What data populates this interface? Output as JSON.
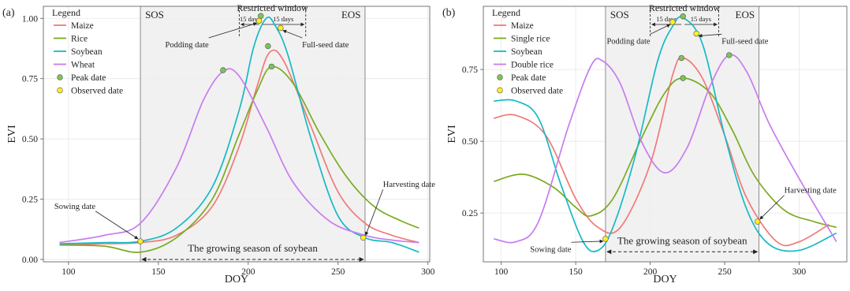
{
  "chart_data": [
    {
      "type": "line",
      "panel_label": "(a)",
      "xlabel": "DOY",
      "ylabel": "EVI",
      "xlim": [
        86,
        301
      ],
      "ylim": [
        -0.01,
        1.05
      ],
      "xticks": [
        100,
        150,
        200,
        250,
        300
      ],
      "yticks": [
        0.0,
        0.25,
        0.5,
        0.75,
        1.0
      ],
      "ytick_labels": [
        "0.00",
        "0.25",
        "0.50",
        "0.75",
        "1.00"
      ],
      "grid": true,
      "legend_placement": "top-left",
      "legend_title": "Legend",
      "season_band": {
        "start": 140,
        "end": 265,
        "start_label": "SOS",
        "end_label": "EOS"
      },
      "restricted_window": {
        "label": "Restricted window",
        "start": 195,
        "end": 232,
        "left_label": "15 days",
        "right_label": "15 days"
      },
      "growing_season_label": "The growing season of soybean",
      "series": [
        {
          "name": "Maize",
          "color": "#f07a78",
          "x": [
            95,
            120,
            140,
            160,
            180,
            195,
            205,
            212,
            220,
            235,
            250,
            265,
            280,
            295
          ],
          "y": [
            0.06,
            0.065,
            0.07,
            0.1,
            0.22,
            0.47,
            0.72,
            0.86,
            0.82,
            0.55,
            0.28,
            0.15,
            0.1,
            0.07
          ]
        },
        {
          "name": "Rice",
          "color": "#7aab22",
          "x": [
            95,
            120,
            140,
            160,
            180,
            195,
            205,
            213,
            225,
            240,
            255,
            270,
            285,
            295
          ],
          "y": [
            0.06,
            0.055,
            0.03,
            0.09,
            0.25,
            0.52,
            0.7,
            0.8,
            0.73,
            0.52,
            0.34,
            0.22,
            0.16,
            0.13
          ]
        },
        {
          "name": "Soybean",
          "color": "#18b9c4",
          "x": [
            95,
            120,
            140,
            160,
            180,
            195,
            203,
            210,
            215,
            222,
            235,
            250,
            265,
            280,
            295
          ],
          "y": [
            0.065,
            0.07,
            0.075,
            0.13,
            0.3,
            0.62,
            0.88,
            1.0,
            0.97,
            0.85,
            0.5,
            0.18,
            0.09,
            0.07,
            0.03
          ]
        },
        {
          "name": "Wheat",
          "color": "#c77cf0",
          "x": [
            95,
            120,
            140,
            160,
            175,
            186,
            195,
            210,
            225,
            245,
            265,
            280,
            295
          ],
          "y": [
            0.07,
            0.1,
            0.15,
            0.38,
            0.66,
            0.78,
            0.76,
            0.55,
            0.32,
            0.16,
            0.1,
            0.08,
            0.07
          ]
        }
      ],
      "peaks": [
        {
          "x": 207,
          "y": 1.01
        },
        {
          "x": 211,
          "y": 0.885
        },
        {
          "x": 213,
          "y": 0.8
        },
        {
          "x": 186,
          "y": 0.785
        }
      ],
      "observed": [
        {
          "x": 140,
          "y": 0.075,
          "label": "Sowing date",
          "tx": 115,
          "ty": 0.21
        },
        {
          "x": 206,
          "y": 0.99,
          "label": "Podding date",
          "tx": 178,
          "ty": 0.88
        },
        {
          "x": 218,
          "y": 0.96,
          "label": "Full-seed date",
          "tx": 230,
          "ty": 0.88
        },
        {
          "x": 264,
          "y": 0.09,
          "label": "Harvesting date",
          "tx": 275,
          "ty": 0.3
        }
      ],
      "legend": [
        {
          "label": "Maize",
          "kind": "line",
          "color": "#f07a78"
        },
        {
          "label": "Rice",
          "kind": "line",
          "color": "#7aab22"
        },
        {
          "label": "Soybean",
          "kind": "line",
          "color": "#18b9c4"
        },
        {
          "label": "Wheat",
          "kind": "line",
          "color": "#c77cf0"
        },
        {
          "label": "Peak date",
          "kind": "point",
          "color": "#7dc35b"
        },
        {
          "label": "Observed date",
          "kind": "point",
          "color": "#ffee22"
        }
      ]
    },
    {
      "type": "line",
      "panel_label": "(b)",
      "xlabel": "DOY",
      "ylabel": "EVI",
      "xlim": [
        88,
        332
      ],
      "ylim": [
        0.08,
        0.97
      ],
      "xticks": [
        100,
        150,
        200,
        250,
        300
      ],
      "yticks": [
        0.25,
        0.5,
        0.75
      ],
      "ytick_labels": [
        "0.25",
        "0.50",
        "0.75"
      ],
      "grid": true,
      "legend_placement": "top-left",
      "legend_title": "Legend",
      "season_band": {
        "start": 170,
        "end": 273,
        "start_label": "SOS",
        "end_label": "EOS"
      },
      "restricted_window": {
        "label": "Restricted window",
        "start": 200,
        "end": 246,
        "left_label": "15 days",
        "right_label": "15 days"
      },
      "growing_season_label": "The growing season of soybean",
      "series": [
        {
          "name": "Maize",
          "color": "#f07a78",
          "x": [
            95,
            110,
            130,
            150,
            165,
            180,
            200,
            215,
            222,
            235,
            250,
            265,
            285,
            300,
            320
          ],
          "y": [
            0.58,
            0.59,
            0.52,
            0.3,
            0.2,
            0.2,
            0.42,
            0.73,
            0.79,
            0.72,
            0.52,
            0.3,
            0.15,
            0.15,
            0.21
          ]
        },
        {
          "name": "Single rice",
          "color": "#7aab22",
          "x": [
            95,
            115,
            135,
            150,
            160,
            175,
            195,
            210,
            222,
            240,
            255,
            270,
            290,
            310,
            325
          ],
          "y": [
            0.36,
            0.385,
            0.34,
            0.27,
            0.24,
            0.3,
            0.52,
            0.67,
            0.72,
            0.67,
            0.54,
            0.38,
            0.26,
            0.22,
            0.2
          ]
        },
        {
          "name": "Soybean",
          "color": "#18b9c4",
          "x": [
            95,
            110,
            125,
            140,
            155,
            165,
            175,
            190,
            205,
            215,
            222,
            235,
            250,
            265,
            280,
            300,
            325
          ],
          "y": [
            0.64,
            0.64,
            0.58,
            0.35,
            0.15,
            0.12,
            0.2,
            0.45,
            0.78,
            0.9,
            0.93,
            0.84,
            0.52,
            0.26,
            0.14,
            0.12,
            0.18
          ]
        },
        {
          "name": "Double rice",
          "color": "#c77cf0",
          "x": [
            95,
            110,
            125,
            145,
            160,
            168,
            180,
            195,
            210,
            225,
            240,
            253,
            265,
            280,
            300,
            325
          ],
          "y": [
            0.16,
            0.15,
            0.22,
            0.55,
            0.76,
            0.78,
            0.7,
            0.49,
            0.39,
            0.48,
            0.69,
            0.8,
            0.74,
            0.56,
            0.37,
            0.15
          ]
        }
      ],
      "peaks": [
        {
          "x": 222,
          "y": 0.935
        },
        {
          "x": 221,
          "y": 0.79
        },
        {
          "x": 222,
          "y": 0.72
        },
        {
          "x": 253,
          "y": 0.8
        }
      ],
      "observed": [
        {
          "x": 170,
          "y": 0.16,
          "label": "Sowing date",
          "tx": 147,
          "ty": 0.115
        },
        {
          "x": 215,
          "y": 0.915,
          "label": "Podding date",
          "tx": 200,
          "ty": 0.84
        },
        {
          "x": 231,
          "y": 0.875,
          "label": "Full-seed date",
          "tx": 248,
          "ty": 0.84
        },
        {
          "x": 272,
          "y": 0.22,
          "label": "Harvesting date",
          "tx": 290,
          "ty": 0.32
        }
      ],
      "legend": [
        {
          "label": "Maize",
          "kind": "line",
          "color": "#f07a78"
        },
        {
          "label": "Single rice",
          "kind": "line",
          "color": "#7aab22"
        },
        {
          "label": "Soybean",
          "kind": "line",
          "color": "#18b9c4"
        },
        {
          "label": "Double rice",
          "kind": "line",
          "color": "#c77cf0"
        },
        {
          "label": "Peak date",
          "kind": "point",
          "color": "#7dc35b"
        },
        {
          "label": "Observed date",
          "kind": "point",
          "color": "#ffee22"
        }
      ]
    }
  ]
}
